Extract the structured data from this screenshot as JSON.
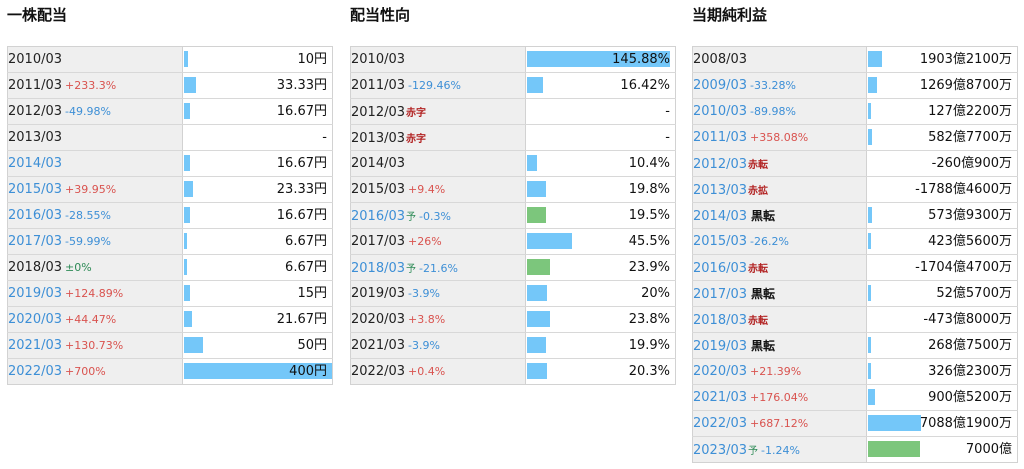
{
  "panels": [
    {
      "key": "dividend",
      "title": "一株配当",
      "rows": [
        {
          "year": "2010/03",
          "link": false,
          "change": "",
          "status": "",
          "forecast": false,
          "value": "10円",
          "bar": 0.025
        },
        {
          "year": "2011/03",
          "link": false,
          "change": "+233.3%",
          "status": "",
          "forecast": false,
          "value": "33.33円",
          "bar": 0.083
        },
        {
          "year": "2012/03",
          "link": false,
          "change": "-49.98%",
          "status": "",
          "forecast": false,
          "value": "16.67円",
          "bar": 0.042
        },
        {
          "year": "2013/03",
          "link": false,
          "change": "",
          "status": "",
          "forecast": false,
          "value": "-",
          "bar": 0
        },
        {
          "year": "2014/03",
          "link": true,
          "change": "",
          "status": "",
          "forecast": false,
          "value": "16.67円",
          "bar": 0.042
        },
        {
          "year": "2015/03",
          "link": true,
          "change": "+39.95%",
          "status": "",
          "forecast": false,
          "value": "23.33円",
          "bar": 0.058
        },
        {
          "year": "2016/03",
          "link": true,
          "change": "-28.55%",
          "status": "",
          "forecast": false,
          "value": "16.67円",
          "bar": 0.042
        },
        {
          "year": "2017/03",
          "link": true,
          "change": "-59.99%",
          "status": "",
          "forecast": false,
          "value": "6.67円",
          "bar": 0.017
        },
        {
          "year": "2018/03",
          "link": false,
          "change": "±0%",
          "status": "",
          "forecast": false,
          "value": "6.67円",
          "bar": 0.017
        },
        {
          "year": "2019/03",
          "link": true,
          "change": "+124.89%",
          "status": "",
          "forecast": false,
          "value": "15円",
          "bar": 0.0375
        },
        {
          "year": "2020/03",
          "link": true,
          "change": "+44.47%",
          "status": "",
          "forecast": false,
          "value": "21.67円",
          "bar": 0.054
        },
        {
          "year": "2021/03",
          "link": true,
          "change": "+130.73%",
          "status": "",
          "forecast": false,
          "value": "50円",
          "bar": 0.125
        },
        {
          "year": "2022/03",
          "link": true,
          "change": "+700%",
          "status": "",
          "forecast": false,
          "value": "400円",
          "bar": 1.0
        }
      ]
    },
    {
      "key": "payout",
      "title": "配当性向",
      "rows": [
        {
          "year": "2010/03",
          "link": false,
          "change": "",
          "status": "",
          "forecast": false,
          "value": "145.88%",
          "bar": 1.0
        },
        {
          "year": "2011/03",
          "link": false,
          "change": "-129.46%",
          "status": "",
          "forecast": false,
          "value": "16.42%",
          "bar": 0.113
        },
        {
          "year": "2012/03",
          "link": false,
          "change": "",
          "status": "赤字",
          "forecast": false,
          "value": "-",
          "bar": 0
        },
        {
          "year": "2013/03",
          "link": false,
          "change": "",
          "status": "赤字",
          "forecast": false,
          "value": "-",
          "bar": 0
        },
        {
          "year": "2014/03",
          "link": false,
          "change": "",
          "status": "",
          "forecast": false,
          "value": "10.4%",
          "bar": 0.071
        },
        {
          "year": "2015/03",
          "link": false,
          "change": "+9.4%",
          "status": "",
          "forecast": false,
          "value": "19.8%",
          "bar": 0.136
        },
        {
          "year": "2016/03",
          "link": true,
          "change": "-0.3%",
          "status": "",
          "forecast": true,
          "value": "19.5%",
          "bar": 0.134
        },
        {
          "year": "2017/03",
          "link": false,
          "change": "+26%",
          "status": "",
          "forecast": false,
          "value": "45.5%",
          "bar": 0.312
        },
        {
          "year": "2018/03",
          "link": true,
          "change": "-21.6%",
          "status": "",
          "forecast": true,
          "value": "23.9%",
          "bar": 0.164
        },
        {
          "year": "2019/03",
          "link": false,
          "change": "-3.9%",
          "status": "",
          "forecast": false,
          "value": "20%",
          "bar": 0.137
        },
        {
          "year": "2020/03",
          "link": false,
          "change": "+3.8%",
          "status": "",
          "forecast": false,
          "value": "23.8%",
          "bar": 0.163
        },
        {
          "year": "2021/03",
          "link": false,
          "change": "-3.9%",
          "status": "",
          "forecast": false,
          "value": "19.9%",
          "bar": 0.136
        },
        {
          "year": "2022/03",
          "link": false,
          "change": "+0.4%",
          "status": "",
          "forecast": false,
          "value": "20.3%",
          "bar": 0.139
        }
      ]
    },
    {
      "key": "profit",
      "title": "当期純利益",
      "rows": [
        {
          "year": "2008/03",
          "link": false,
          "change": "",
          "status": "",
          "forecast": false,
          "value": "1903億2100万",
          "bar": 0.268
        },
        {
          "year": "2009/03",
          "link": true,
          "change": "-33.28%",
          "status": "",
          "forecast": false,
          "value": "1269億8700万",
          "bar": 0.179
        },
        {
          "year": "2010/03",
          "link": true,
          "change": "-89.98%",
          "status": "",
          "forecast": false,
          "value": "127億2200万",
          "bar": 0.018
        },
        {
          "year": "2011/03",
          "link": true,
          "change": "+358.08%",
          "status": "",
          "forecast": false,
          "value": "582億7700万",
          "bar": 0.082
        },
        {
          "year": "2012/03",
          "link": true,
          "change": "",
          "status": "赤転",
          "forecast": false,
          "value": "-260億900万",
          "bar": 0
        },
        {
          "year": "2013/03",
          "link": true,
          "change": "",
          "status": "赤拡",
          "forecast": false,
          "value": "-1788億4600万",
          "bar": 0
        },
        {
          "year": "2014/03",
          "link": true,
          "change": "",
          "status": "黒転",
          "forecast": false,
          "value": "573億9300万",
          "bar": 0.081
        },
        {
          "year": "2015/03",
          "link": true,
          "change": "-26.2%",
          "status": "",
          "forecast": false,
          "value": "423億5600万",
          "bar": 0.06
        },
        {
          "year": "2016/03",
          "link": true,
          "change": "",
          "status": "赤転",
          "forecast": false,
          "value": "-1704億4700万",
          "bar": 0
        },
        {
          "year": "2017/03",
          "link": true,
          "change": "",
          "status": "黒転",
          "forecast": false,
          "value": "52億5700万",
          "bar": 0.007
        },
        {
          "year": "2018/03",
          "link": true,
          "change": "",
          "status": "赤転",
          "forecast": false,
          "value": "-473億8000万",
          "bar": 0
        },
        {
          "year": "2019/03",
          "link": true,
          "change": "",
          "status": "黒転",
          "forecast": false,
          "value": "268億7500万",
          "bar": 0.038
        },
        {
          "year": "2020/03",
          "link": true,
          "change": "+21.39%",
          "status": "",
          "forecast": false,
          "value": "326億2300万",
          "bar": 0.046
        },
        {
          "year": "2021/03",
          "link": true,
          "change": "+176.04%",
          "status": "",
          "forecast": false,
          "value": "900億5200万",
          "bar": 0.127
        },
        {
          "year": "2022/03",
          "link": true,
          "change": "+687.12%",
          "status": "",
          "forecast": false,
          "value": "7088億1900万",
          "bar": 1.0
        },
        {
          "year": "2023/03",
          "link": true,
          "change": "-1.24%",
          "status": "",
          "forecast": true,
          "value": "7000億",
          "bar": 0.988
        }
      ]
    }
  ],
  "forecast_mark": "予",
  "colors": {
    "bar": "#74c7f9",
    "forecast_bar": "#7cc67c",
    "up": "#d9534f",
    "down": "#3d8fd6",
    "status": "#b22222"
  },
  "chart_data": [
    {
      "type": "bar",
      "title": "一株配当",
      "categories": [
        "2010/03",
        "2011/03",
        "2012/03",
        "2013/03",
        "2014/03",
        "2015/03",
        "2016/03",
        "2017/03",
        "2018/03",
        "2019/03",
        "2020/03",
        "2021/03",
        "2022/03"
      ],
      "values": [
        10,
        33.33,
        16.67,
        null,
        16.67,
        23.33,
        16.67,
        6.67,
        6.67,
        15,
        21.67,
        50,
        400
      ]
    },
    {
      "type": "bar",
      "title": "配当性向",
      "categories": [
        "2010/03",
        "2011/03",
        "2012/03",
        "2013/03",
        "2014/03",
        "2015/03",
        "2016/03",
        "2017/03",
        "2018/03",
        "2019/03",
        "2020/03",
        "2021/03",
        "2022/03"
      ],
      "values": [
        145.88,
        16.42,
        null,
        null,
        10.4,
        19.8,
        19.5,
        45.5,
        23.9,
        20,
        23.8,
        19.9,
        20.3
      ]
    },
    {
      "type": "bar",
      "title": "当期純利益",
      "categories": [
        "2008/03",
        "2009/03",
        "2010/03",
        "2011/03",
        "2012/03",
        "2013/03",
        "2014/03",
        "2015/03",
        "2016/03",
        "2017/03",
        "2018/03",
        "2019/03",
        "2020/03",
        "2021/03",
        "2022/03",
        "2023/03"
      ],
      "values": [
        190321,
        126987,
        12722,
        58277,
        -26009,
        -178846,
        57393,
        42356,
        -170447,
        5257,
        -47380,
        26875,
        32623,
        90052,
        708819,
        700000
      ]
    }
  ]
}
